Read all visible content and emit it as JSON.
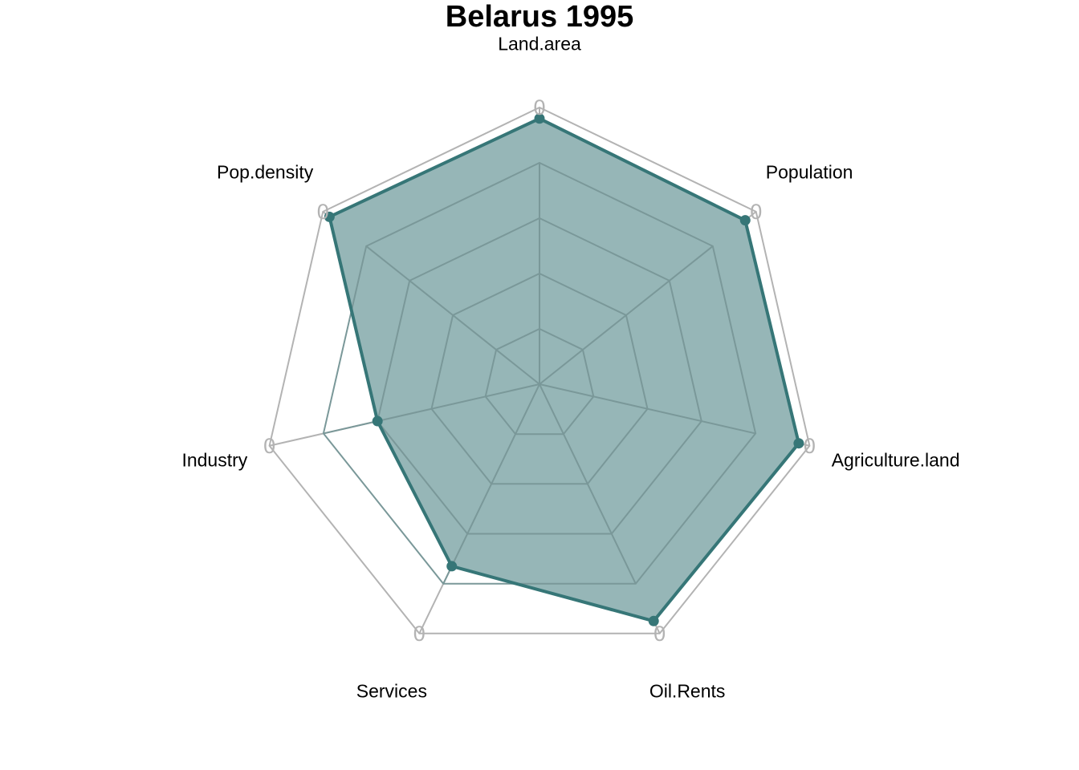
{
  "chart_data": {
    "type": "radar",
    "title": "Belarus 1995",
    "axes": [
      "Land.area",
      "Population",
      "Agriculture.land",
      "Oil.Rents",
      "Services",
      "Industry",
      "Pop.density"
    ],
    "series": [
      {
        "values": [
          0.96,
          0.95,
          0.96,
          0.95,
          0.73,
          0.6,
          0.97
        ]
      }
    ],
    "range": [
      0,
      1
    ],
    "grid_levels": 5,
    "outer_label": "0",
    "colors": {
      "series_line": "#367677",
      "series_fill": "#96b6b7",
      "grid_inner": "#7a9899",
      "grid_outer": "#b3b3b3"
    }
  }
}
